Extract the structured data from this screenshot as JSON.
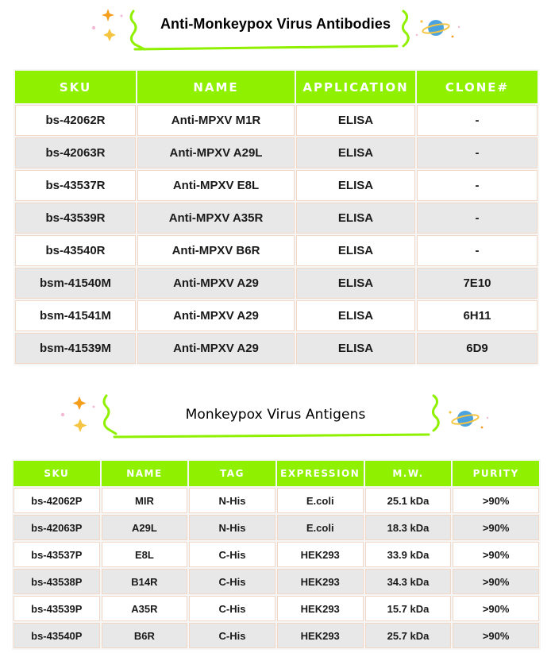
{
  "antibodies": {
    "title": "Anti-Monkeypox Virus Antibodies",
    "columns": [
      "SKU",
      "NAME",
      "APPLICATION",
      "CLONE#"
    ],
    "rows": [
      [
        "bs-42062R",
        "Anti-MPXV M1R",
        "ELISA",
        "-"
      ],
      [
        "bs-42063R",
        "Anti-MPXV A29L",
        "ELISA",
        "-"
      ],
      [
        "bs-43537R",
        "Anti-MPXV E8L",
        "ELISA",
        "-"
      ],
      [
        "bs-43539R",
        "Anti-MPXV A35R",
        "ELISA",
        "-"
      ],
      [
        "bs-43540R",
        "Anti-MPXV B6R",
        "ELISA",
        "-"
      ],
      [
        "bsm-41540M",
        "Anti-MPXV A29",
        "ELISA",
        "7E10"
      ],
      [
        "bsm-41541M",
        "Anti-MPXV A29",
        "ELISA",
        "6H11"
      ],
      [
        "bsm-41539M",
        "Anti-MPXV A29",
        "ELISA",
        "6D9"
      ]
    ]
  },
  "antigens": {
    "title": "Monkeypox Virus Antigens",
    "columns": [
      "SKU",
      "NAME",
      "TAG",
      "EXPRESSION",
      "M.W.",
      "PURITY"
    ],
    "rows": [
      [
        "bs-42062P",
        "MIR",
        "N-His",
        "E.coli",
        "25.1 kDa",
        ">90%"
      ],
      [
        "bs-42063P",
        "A29L",
        "N-His",
        "E.coli",
        "18.3 kDa",
        ">90%"
      ],
      [
        "bs-43537P",
        "E8L",
        "C-His",
        "HEK293",
        "33.9 kDa",
        ">90%"
      ],
      [
        "bs-43538P",
        "B14R",
        "C-His",
        "HEK293",
        "34.3 kDa",
        ">90%"
      ],
      [
        "bs-43539P",
        "A35R",
        "C-His",
        "HEK293",
        "15.7 kDa",
        ">90%"
      ],
      [
        "bs-43540P",
        "B6R",
        "C-His",
        "HEK293",
        "25.7 kDa",
        ">90%"
      ]
    ]
  },
  "colors": {
    "header_green": "#8ff000",
    "row_alt": "#e8e8e8",
    "star_orange": "#f59e1b",
    "planet_blue": "#4aa3df",
    "planet_ring": "#f5c542"
  },
  "icons": [
    "star-icon",
    "planet-icon",
    "sparkle-icon"
  ]
}
